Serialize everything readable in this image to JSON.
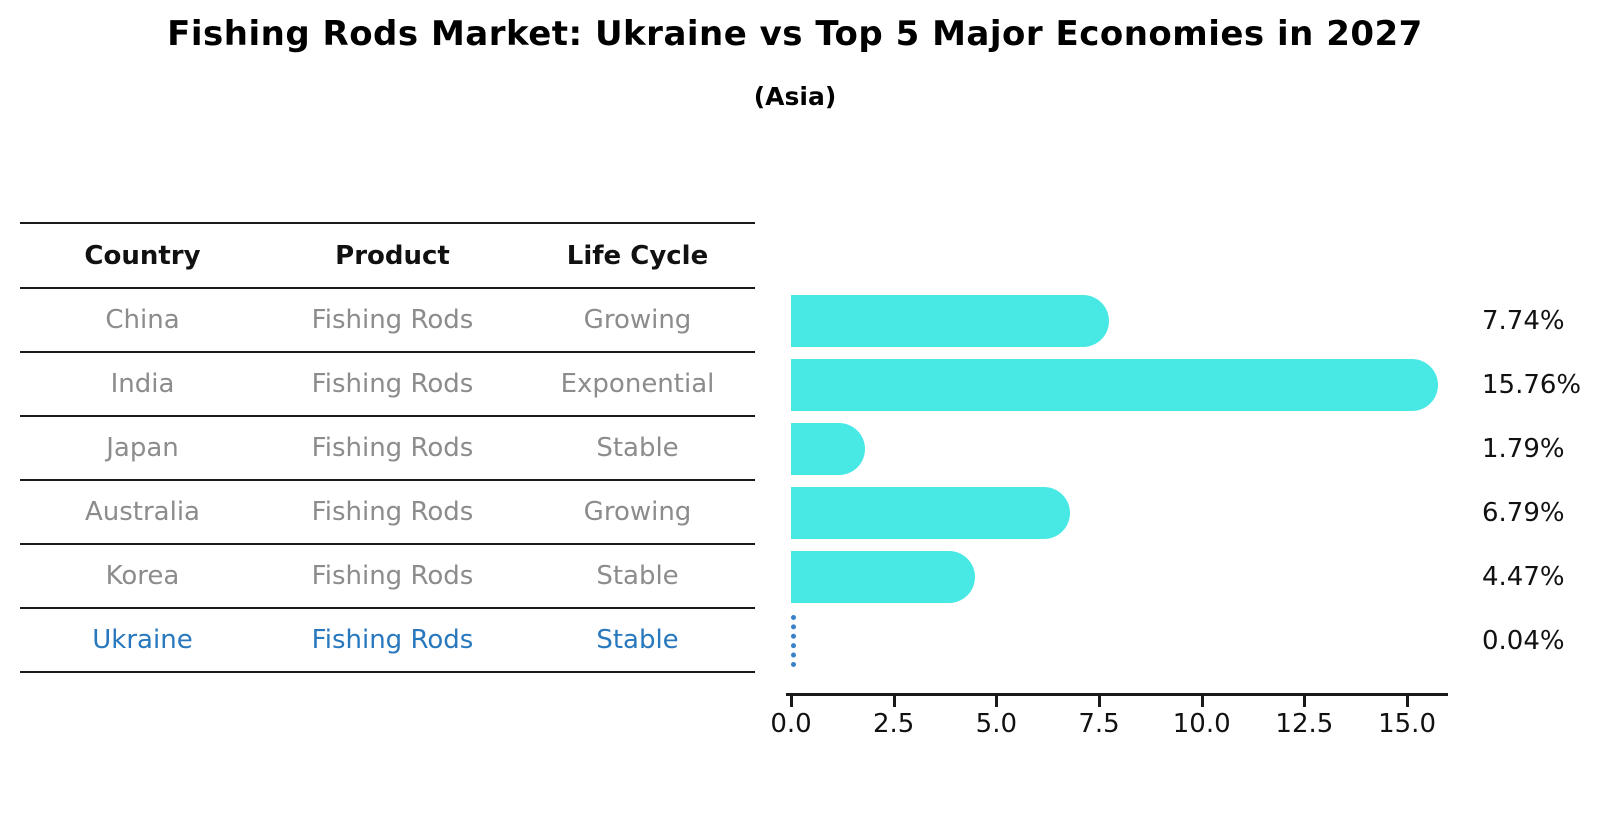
{
  "title": "Fishing Rods Market: Ukraine vs Top 5 Major Economies in 2027",
  "subtitle": "(Asia)",
  "table": {
    "headers": [
      "Country",
      "Product",
      "Life Cycle"
    ],
    "rows": [
      {
        "country": "China",
        "product": "Fishing Rods",
        "life_cycle": "Growing",
        "highlight": false
      },
      {
        "country": "India",
        "product": "Fishing Rods",
        "life_cycle": "Exponential",
        "highlight": false
      },
      {
        "country": "Japan",
        "product": "Fishing Rods",
        "life_cycle": "Stable",
        "highlight": false
      },
      {
        "country": "Australia",
        "product": "Fishing Rods",
        "life_cycle": "Growing",
        "highlight": false
      },
      {
        "country": "Korea",
        "product": "Fishing Rods",
        "life_cycle": "Stable",
        "highlight": false
      },
      {
        "country": "Ukraine",
        "product": "Fishing Rods",
        "life_cycle": "Stable",
        "highlight": true
      }
    ]
  },
  "chart_data": {
    "type": "bar",
    "orientation": "horizontal",
    "title": "Fishing Rods Market: Ukraine vs Top 5 Major Economies in 2027",
    "subtitle": "(Asia)",
    "categories": [
      "China",
      "India",
      "Japan",
      "Australia",
      "Korea",
      "Ukraine"
    ],
    "values": [
      7.74,
      15.76,
      1.79,
      6.79,
      4.47,
      0.04
    ],
    "value_labels": [
      "7.74%",
      "15.76%",
      "1.79%",
      "6.79%",
      "4.47%",
      "0.04%"
    ],
    "xlim": [
      0,
      16
    ],
    "xticks": [
      0.0,
      2.5,
      5.0,
      7.5,
      10.0,
      12.5,
      15.0
    ],
    "xtick_labels": [
      "0.0",
      "2.5",
      "5.0",
      "7.5",
      "10.0",
      "12.5",
      "15.0"
    ],
    "grid": false,
    "legend": false,
    "bar_color": "#48e8e4",
    "highlight_index": 5,
    "highlight_color": "#2878be",
    "value_label_color": "#111111"
  },
  "colors": {
    "background": "#ffffff",
    "title_text": "#000000",
    "table_line": "#1a1a1a",
    "table_text": "#8c8c8c",
    "header_text": "#111111",
    "accent_blue": "#2878be",
    "bar_cyan": "#48e8e4"
  }
}
